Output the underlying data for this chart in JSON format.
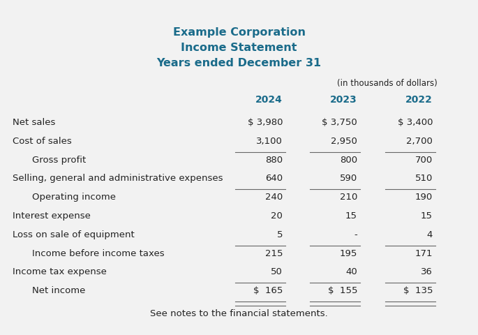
{
  "title_lines": [
    "Example Corporation",
    "Income Statement",
    "Years ended December 31"
  ],
  "title_color": "#1a6b8a",
  "subtitle_note": "(in thousands of dollars)",
  "columns": [
    "2024",
    "2023",
    "2022"
  ],
  "rows": [
    {
      "label": "Net sales",
      "indent": 0,
      "vals": [
        "$ 3,980",
        "$ 3,750",
        "$ 3,400"
      ],
      "underline_below": false,
      "double_underline": false
    },
    {
      "label": "Cost of sales",
      "indent": 0,
      "vals": [
        "3,100",
        "2,950",
        "2,700"
      ],
      "underline_below": true,
      "double_underline": false
    },
    {
      "label": "Gross profit",
      "indent": 1,
      "vals": [
        "880",
        "800",
        "700"
      ],
      "underline_below": false,
      "double_underline": false
    },
    {
      "label": "Selling, general and administrative expenses",
      "indent": 0,
      "vals": [
        "640",
        "590",
        "510"
      ],
      "underline_below": true,
      "double_underline": false
    },
    {
      "label": "Operating income",
      "indent": 1,
      "vals": [
        "240",
        "210",
        "190"
      ],
      "underline_below": false,
      "double_underline": false
    },
    {
      "label": "Interest expense",
      "indent": 0,
      "vals": [
        "20",
        "15",
        "15"
      ],
      "underline_below": false,
      "double_underline": false
    },
    {
      "label": "Loss on sale of equipment",
      "indent": 0,
      "vals": [
        "5",
        "-",
        "4"
      ],
      "underline_below": true,
      "double_underline": false
    },
    {
      "label": "Income before income taxes",
      "indent": 1,
      "vals": [
        "215",
        "195",
        "171"
      ],
      "underline_below": false,
      "double_underline": false
    },
    {
      "label": "Income tax expense",
      "indent": 0,
      "vals": [
        "50",
        "40",
        "36"
      ],
      "underline_below": true,
      "double_underline": false
    },
    {
      "label": "Net income",
      "indent": 1,
      "vals": [
        "$  165",
        "$  155",
        "$  135"
      ],
      "underline_below": false,
      "double_underline": true
    }
  ],
  "footer": "See notes to the financial statements.",
  "bg_color": "#f2f2f2",
  "text_color": "#222222",
  "col_header_color": "#1a6b8a",
  "figsize": [
    6.85,
    4.81
  ],
  "dpi": 100
}
